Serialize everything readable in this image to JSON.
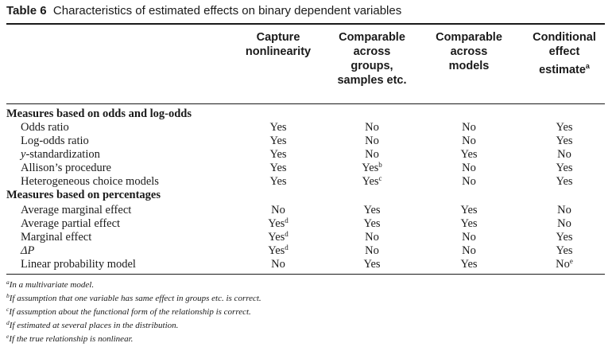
{
  "table": {
    "number": "Table 6",
    "caption": "Characteristics of estimated effects on binary dependent variables",
    "columns": [
      "Capture\nnonlinearity",
      "Comparable\nacross\ngroups,\nsamples etc.",
      "Comparable\nacross\nmodels",
      "Conditional\neffect\nestimate"
    ],
    "column_marks": [
      "",
      "",
      "",
      "a"
    ],
    "rows": [
      {
        "type": "section",
        "label": "Measures based on odds and log-odds"
      },
      {
        "type": "data",
        "label": "Odds ratio",
        "cells": [
          {
            "v": "Yes",
            "n": ""
          },
          {
            "v": "No",
            "n": ""
          },
          {
            "v": "No",
            "n": ""
          },
          {
            "v": "Yes",
            "n": ""
          }
        ]
      },
      {
        "type": "data",
        "label": "Log-odds ratio",
        "cells": [
          {
            "v": "Yes",
            "n": ""
          },
          {
            "v": "No",
            "n": ""
          },
          {
            "v": "No",
            "n": ""
          },
          {
            "v": "Yes",
            "n": ""
          }
        ]
      },
      {
        "type": "data",
        "label": "y-standardization",
        "italic_prefix": "y",
        "cells": [
          {
            "v": "Yes",
            "n": ""
          },
          {
            "v": "No",
            "n": ""
          },
          {
            "v": "Yes",
            "n": ""
          },
          {
            "v": "No",
            "n": ""
          }
        ]
      },
      {
        "type": "data",
        "label": "Allison’s procedure",
        "cells": [
          {
            "v": "Yes",
            "n": ""
          },
          {
            "v": "Yes",
            "n": "b"
          },
          {
            "v": "No",
            "n": ""
          },
          {
            "v": "Yes",
            "n": ""
          }
        ]
      },
      {
        "type": "data",
        "label": "Heterogeneous choice models",
        "cells": [
          {
            "v": "Yes",
            "n": ""
          },
          {
            "v": "Yes",
            "n": "c"
          },
          {
            "v": "No",
            "n": ""
          },
          {
            "v": "Yes",
            "n": ""
          }
        ]
      },
      {
        "type": "section",
        "label": "Measures based on percentages"
      },
      {
        "type": "data",
        "label": "Average marginal effect",
        "cells": [
          {
            "v": "No",
            "n": ""
          },
          {
            "v": "Yes",
            "n": ""
          },
          {
            "v": "Yes",
            "n": ""
          },
          {
            "v": "No",
            "n": ""
          }
        ]
      },
      {
        "type": "data",
        "label": "Average partial effect",
        "cells": [
          {
            "v": "Yes",
            "n": "d"
          },
          {
            "v": "Yes",
            "n": ""
          },
          {
            "v": "Yes",
            "n": ""
          },
          {
            "v": "No",
            "n": ""
          }
        ]
      },
      {
        "type": "data",
        "label": "Marginal effect",
        "cells": [
          {
            "v": "Yes",
            "n": "d"
          },
          {
            "v": "No",
            "n": ""
          },
          {
            "v": "No",
            "n": ""
          },
          {
            "v": "Yes",
            "n": ""
          }
        ]
      },
      {
        "type": "data",
        "label": "ΔP",
        "italic_whole": true,
        "cells": [
          {
            "v": "Yes",
            "n": "d"
          },
          {
            "v": "No",
            "n": ""
          },
          {
            "v": "No",
            "n": ""
          },
          {
            "v": "Yes",
            "n": ""
          }
        ]
      },
      {
        "type": "data",
        "label": "Linear probability model",
        "cells": [
          {
            "v": "No",
            "n": ""
          },
          {
            "v": "Yes",
            "n": ""
          },
          {
            "v": "Yes",
            "n": ""
          },
          {
            "v": "No",
            "n": "e"
          }
        ]
      }
    ]
  },
  "footnotes": [
    {
      "mark": "a",
      "text": "In a multivariate model."
    },
    {
      "mark": "b",
      "text": "If assumption that one variable has same effect in groups etc. is correct."
    },
    {
      "mark": "c",
      "text": "If assumption about the functional form of the relationship is correct."
    },
    {
      "mark": "d",
      "text": "If estimated at several places in the distribution."
    },
    {
      "mark": "e",
      "text": "If the true relationship is nonlinear."
    }
  ]
}
